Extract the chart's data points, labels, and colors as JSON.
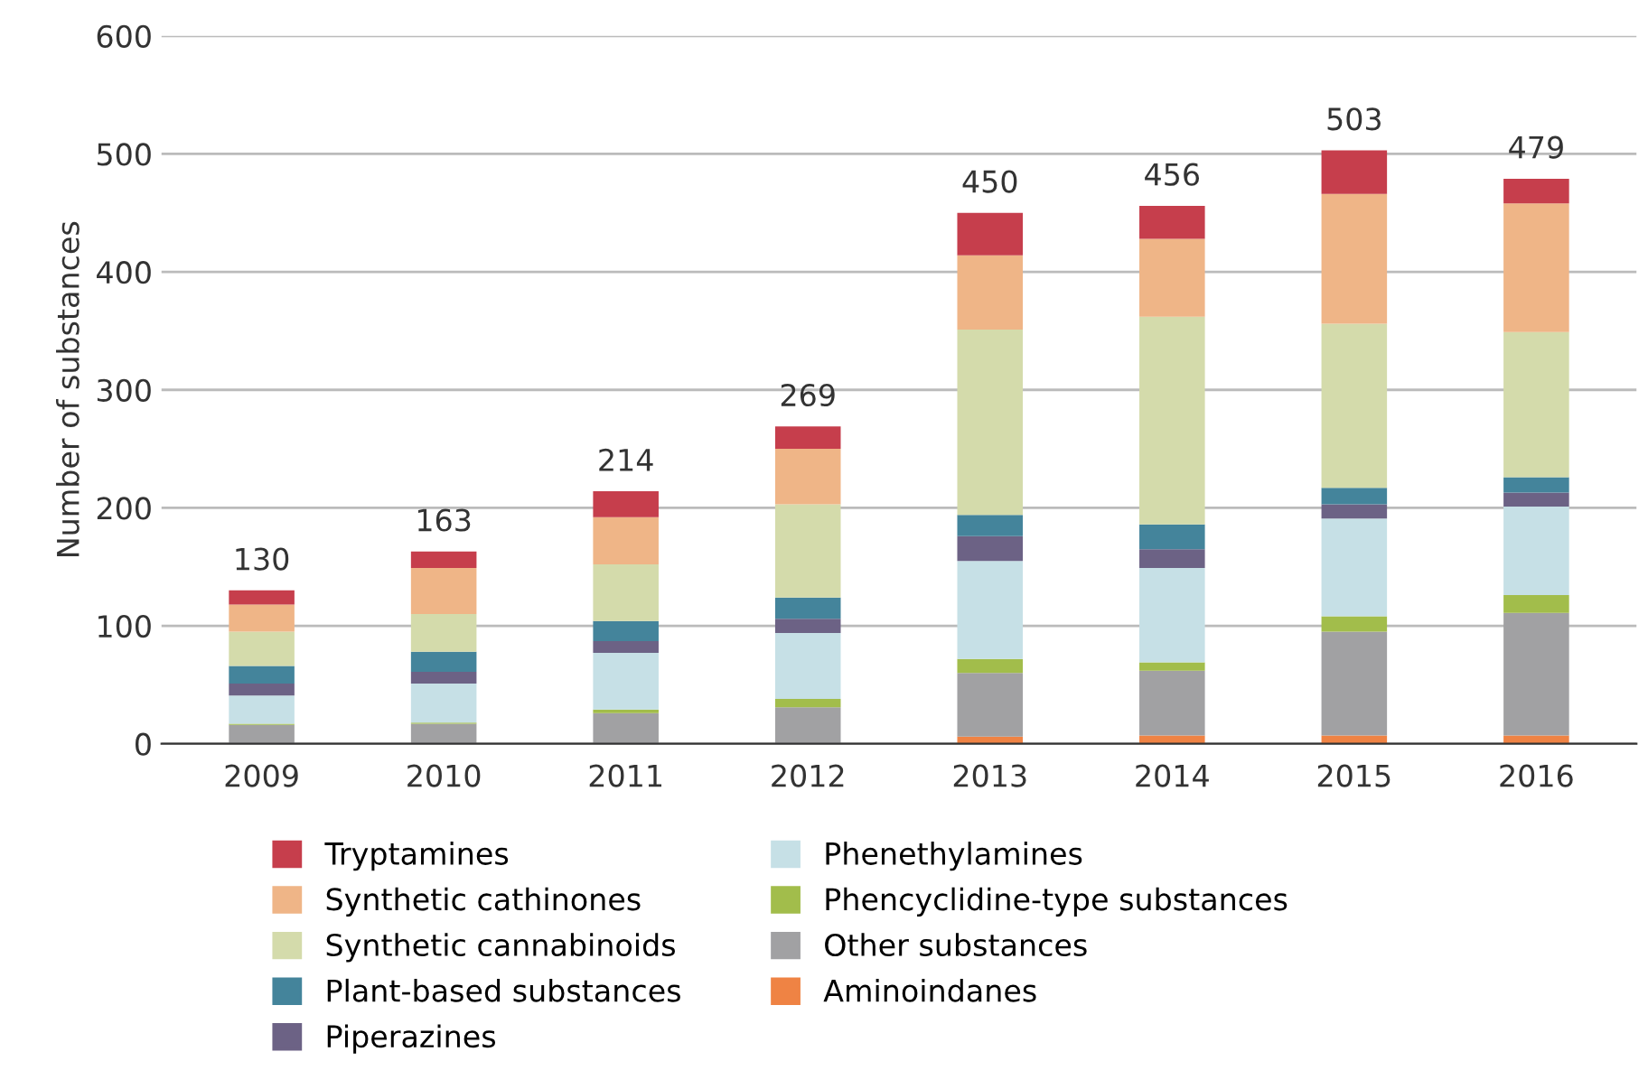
{
  "chart_data": {
    "type": "bar",
    "stacked": true,
    "ylabel": "Number of substances",
    "categories": [
      "2009",
      "2010",
      "2011",
      "2012",
      "2013",
      "2014",
      "2015",
      "2016"
    ],
    "series": [
      {
        "name": "Aminoindanes",
        "color": "#ef8344",
        "values": [
          0,
          0,
          0,
          0,
          6,
          7,
          7,
          7
        ]
      },
      {
        "name": "Other substances",
        "color": "#a1a1a3",
        "values": [
          16,
          17,
          26,
          31,
          54,
          55,
          88,
          104
        ]
      },
      {
        "name": "Phencyclidine-type substances",
        "color": "#a2bd4b",
        "values": [
          1,
          1,
          3,
          7,
          12,
          7,
          13,
          15
        ]
      },
      {
        "name": "Phenethylamines",
        "color": "#c6e0e6",
        "values": [
          24,
          33,
          48,
          56,
          83,
          80,
          83,
          75
        ]
      },
      {
        "name": "Piperazines",
        "color": "#6c6285",
        "values": [
          10,
          10,
          10,
          12,
          21,
          16,
          12,
          12
        ]
      },
      {
        "name": "Plant-based substances",
        "color": "#44849b",
        "values": [
          15,
          17,
          17,
          18,
          18,
          21,
          14,
          13
        ]
      },
      {
        "name": "Synthetic cannabinoids",
        "color": "#d4dbab",
        "values": [
          29,
          32,
          48,
          79,
          157,
          176,
          139,
          123
        ]
      },
      {
        "name": "Synthetic cathinones",
        "color": "#efb587",
        "values": [
          23,
          39,
          40,
          47,
          63,
          66,
          110,
          109
        ]
      },
      {
        "name": "Tryptamines",
        "color": "#c63e4c",
        "values": [
          12,
          14,
          22,
          19,
          36,
          28,
          37,
          21
        ]
      }
    ],
    "totals": [
      "130",
      "163",
      "214",
      "269",
      "450",
      "456",
      "503",
      "479"
    ],
    "ylim": [
      0,
      600
    ],
    "yticks": [
      0,
      100,
      200,
      300,
      400,
      500,
      600
    ],
    "grid": "y",
    "legend": "bottom"
  }
}
